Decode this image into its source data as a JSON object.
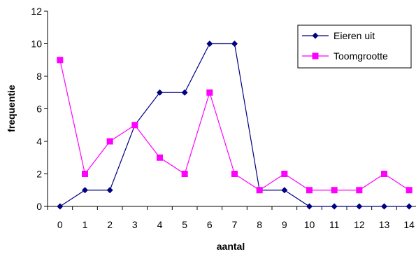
{
  "chart_data": {
    "type": "line",
    "title": "",
    "xlabel": "aantal",
    "ylabel": "frequentie",
    "x": [
      0,
      1,
      2,
      3,
      4,
      5,
      6,
      7,
      8,
      9,
      10,
      11,
      12,
      13,
      14
    ],
    "ylim": [
      0,
      12
    ],
    "yticks": [
      0,
      2,
      4,
      6,
      8,
      10,
      12
    ],
    "grid": false,
    "legend_position": "top-right",
    "series": [
      {
        "name": "Eieren uit",
        "color": "#000080",
        "marker": "diamond",
        "values": [
          0,
          1,
          1,
          5,
          7,
          7,
          10,
          10,
          1,
          1,
          0,
          0,
          0,
          0,
          0
        ]
      },
      {
        "name": "Toomgrootte",
        "color": "#FF00FF",
        "marker": "square",
        "values": [
          9,
          2,
          4,
          5,
          3,
          2,
          7,
          2,
          1,
          2,
          1,
          1,
          1,
          2,
          1
        ]
      }
    ]
  }
}
